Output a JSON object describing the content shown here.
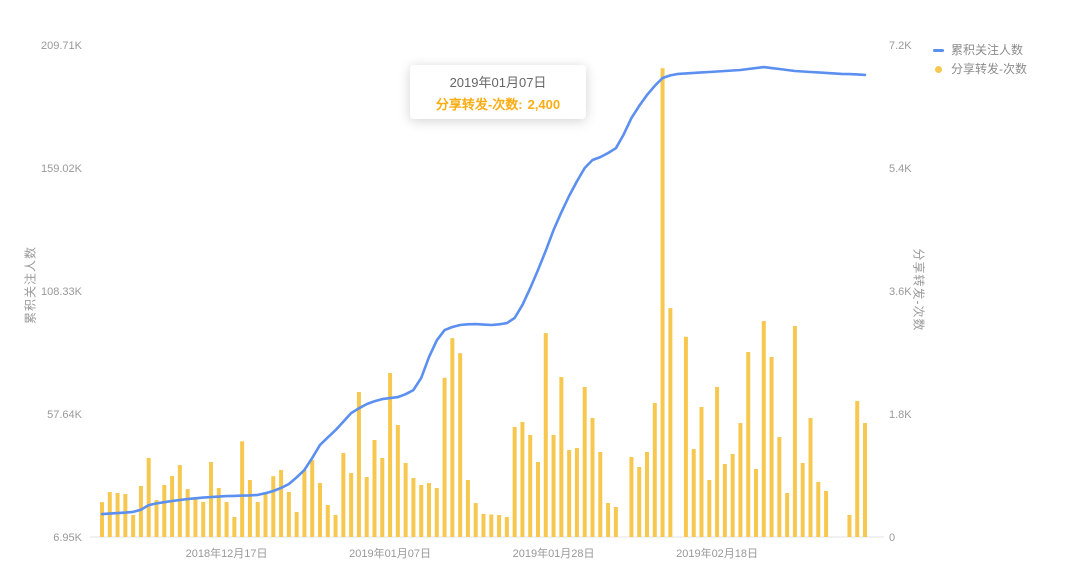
{
  "page": {
    "background": "#ffffff"
  },
  "colors": {
    "line": "#5b8ff0",
    "bar": "#f7c84f",
    "axis_text": "#999999",
    "axis_line": "#e3e3e3",
    "legend_text": "#8c8c8c",
    "tooltip_title": "#666666",
    "tooltip_accent": "#faad14"
  },
  "legend": {
    "items": [
      {
        "label": "累积关注人数",
        "type": "line",
        "color": "#5b8ff0"
      },
      {
        "label": "分享转发-次数",
        "type": "bar",
        "color": "#f7c84f"
      }
    ]
  },
  "tooltip": {
    "title": "2019年01月07日",
    "label": "分享转发-次数:",
    "value": "2,400"
  },
  "axes": {
    "left": {
      "title": "累积关注人数",
      "tick_labels_bottom_to_top": [
        "6.95K",
        "57.64K",
        "108.33K",
        "159.02K",
        "209.71K"
      ]
    },
    "right": {
      "title": "分享转发-次数",
      "tick_labels_bottom_to_top": [
        "0",
        "1.8K",
        "3.6K",
        "5.4K",
        "7.2K"
      ]
    },
    "x": {
      "tick_labels": [
        "2018年12月17日",
        "2019年01月07日",
        "2019年01月28日",
        "2019年02月18日"
      ],
      "tick_indices": [
        16,
        37,
        58,
        79
      ]
    }
  },
  "chart_data": {
    "type": "bar+line",
    "n_points": 99,
    "x_start_date": "2018-12-01",
    "x_interval_days": 1,
    "left_axis": {
      "label": "累积关注人数",
      "range_k": [
        6.95,
        209.71
      ],
      "tick_labels": [
        "6.95K",
        "57.64K",
        "108.33K",
        "159.02K",
        "209.71K"
      ]
    },
    "right_axis": {
      "label": "分享转发-次数",
      "range": [
        0,
        7200
      ],
      "tick_labels": [
        "0",
        "1.8K",
        "3.6K",
        "5.4K",
        "7.2K"
      ]
    },
    "highlight": {
      "index": 37,
      "date": "2019年01月07日",
      "series": "分享转发-次数",
      "value": 2400
    },
    "series": [
      {
        "name": "累积关注人数",
        "type": "line",
        "y_axis": "left",
        "color": "#5b8ff0",
        "values_k": [
          16.4,
          16.6,
          16.8,
          17.0,
          17.3,
          18.2,
          20.1,
          20.8,
          21.3,
          21.8,
          22.2,
          22.6,
          22.9,
          23.2,
          23.4,
          23.6,
          23.8,
          23.9,
          24.0,
          24.1,
          24.3,
          25.0,
          25.9,
          27.2,
          28.8,
          31.5,
          34.6,
          39.5,
          44.9,
          48.0,
          51.0,
          54.5,
          58.0,
          60.0,
          61.7,
          62.9,
          63.8,
          64.2,
          64.6,
          65.8,
          67.5,
          72.5,
          81.1,
          88.0,
          92.2,
          93.5,
          94.3,
          94.6,
          94.7,
          94.5,
          94.3,
          94.6,
          95.1,
          97.2,
          102.5,
          109.5,
          117.0,
          125.0,
          133.5,
          140.8,
          147.5,
          153.5,
          159.0,
          162.3,
          163.5,
          165.2,
          167.2,
          172.8,
          179.6,
          184.6,
          189.1,
          192.9,
          196.1,
          197.2,
          197.8,
          198.0,
          198.2,
          198.4,
          198.6,
          198.8,
          199.0,
          199.2,
          199.4,
          199.8,
          200.2,
          200.6,
          200.2,
          199.8,
          199.4,
          199.0,
          198.8,
          198.6,
          198.4,
          198.2,
          198.0,
          197.8,
          197.7,
          197.6,
          197.4
        ]
      },
      {
        "name": "分享转发-次数",
        "type": "bar",
        "y_axis": "right",
        "color": "#f7c84f",
        "values": [
          510,
          658,
          644,
          629,
          322,
          746,
          1156,
          541,
          761,
          892,
          1053,
          702,
          580,
          512,
          1097,
          717,
          512,
          293,
          1400,
          834,
          512,
          630,
          890,
          980,
          660,
          366,
          980,
          1127,
          790,
          468,
          322,
          1230,
          936,
          2122,
          878,
          1420,
          1156,
          2400,
          1639,
          1083,
          863,
          761,
          790,
          717,
          2330,
          2910,
          2690,
          834,
          497,
          337,
          330,
          322,
          293,
          1610,
          1683,
          1493,
          1098,
          2984,
          1493,
          2341,
          1273,
          1302,
          2195,
          1741,
          1244,
          497,
          439,
          0,
          1171,
          1024,
          1244,
          1960,
          6860,
          3350,
          0,
          2930,
          1287,
          1902,
          834,
          2195,
          1068,
          1214,
          1668,
          2707,
          995,
          3160,
          2634,
          1463,
          644,
          3087,
          1083,
          1741,
          805,
          673,
          0,
          0,
          322,
          1990,
          1668
        ]
      }
    ]
  }
}
